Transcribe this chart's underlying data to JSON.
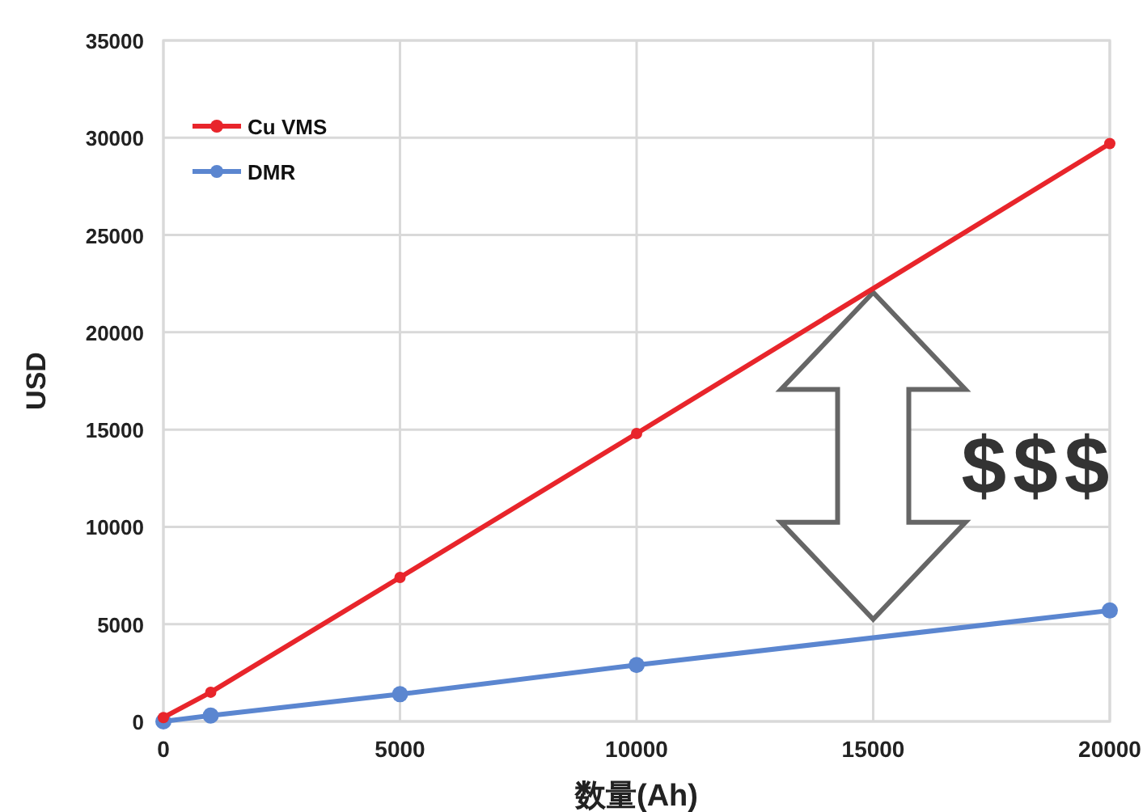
{
  "chart_data": {
    "type": "line",
    "xlabel": "数量(Ah)",
    "ylabel": "USD",
    "x": [
      0,
      1000,
      5000,
      10000,
      20000
    ],
    "series": [
      {
        "name": "Cu VMS",
        "color": "#e8252b",
        "values": [
          200,
          1500,
          7400,
          14800,
          29700
        ]
      },
      {
        "name": "DMR",
        "color": "#5b86d0",
        "values": [
          0,
          300,
          1400,
          2900,
          5700
        ]
      }
    ],
    "xlim": [
      0,
      20000
    ],
    "ylim": [
      0,
      35000
    ],
    "xticks": [
      0,
      5000,
      10000,
      15000,
      20000
    ],
    "yticks": [
      0,
      5000,
      10000,
      15000,
      20000,
      25000,
      30000,
      35000
    ],
    "grid": true,
    "legend": "top left",
    "marker": "circle",
    "line_style": "solid",
    "annotations": [
      "$$$"
    ]
  }
}
